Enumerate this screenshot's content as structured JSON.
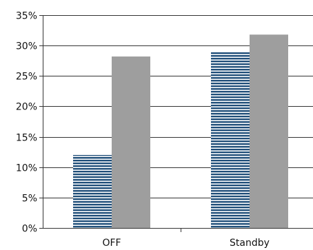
{
  "chart_data": {
    "type": "bar",
    "categories": [
      "OFF",
      "Standby"
    ],
    "series": [
      {
        "values": [
          12,
          29
        ],
        "color": "#1f4e79",
        "fill": "horizontal-stripes"
      },
      {
        "values": [
          28.2,
          31.8
        ],
        "color": "#9e9e9e",
        "fill": "solid"
      }
    ],
    "ylim": [
      0,
      35
    ],
    "y_ticks": [
      0,
      5,
      10,
      15,
      20,
      25,
      30,
      35
    ],
    "y_tick_labels": [
      "0%",
      "5%",
      "10%",
      "15%",
      "20%",
      "25%",
      "30%",
      "35%"
    ],
    "grid": true,
    "legend": "none"
  }
}
